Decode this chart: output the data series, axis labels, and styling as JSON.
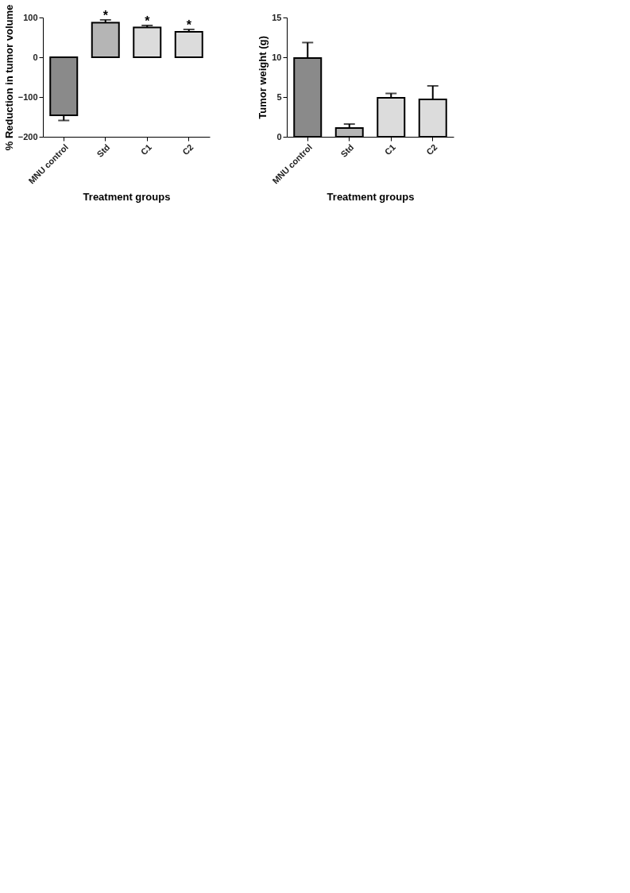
{
  "chart_data": [
    {
      "type": "bar",
      "categories": [
        "MNU control",
        "Std",
        "C1",
        "C2"
      ],
      "values": [
        -146,
        87,
        75,
        64
      ],
      "errors": [
        13,
        7,
        5,
        6
      ],
      "colors": [
        "#8a8a8a",
        "#b5b5b5",
        "#dcdcdc",
        "#dcdcdc"
      ],
      "xlabel": "Treatment groups",
      "ylabel": "% Reduction in tumor volume",
      "ylim": [
        -200,
        100
      ],
      "yticks": [
        -200,
        -100,
        0,
        100
      ],
      "grid": false,
      "annotations": [
        {
          "text": "*",
          "x": "Std",
          "y": 104
        },
        {
          "text": "*",
          "x": "C1",
          "y": 90
        },
        {
          "text": "*",
          "x": "C2",
          "y": 80
        }
      ]
    },
    {
      "type": "bar",
      "categories": [
        "MNU control",
        "Std",
        "C1",
        "C2"
      ],
      "values": [
        9.9,
        1.1,
        4.9,
        4.7
      ],
      "errors": [
        1.95,
        0.5,
        0.55,
        1.7
      ],
      "colors": [
        "#8a8a8a",
        "#b5b5b5",
        "#dcdcdc",
        "#dcdcdc"
      ],
      "xlabel": "Treatment groups",
      "ylabel": "Tumor weight (g)",
      "ylim": [
        0,
        15
      ],
      "yticks": [
        0,
        5,
        10,
        15
      ],
      "grid": false
    }
  ]
}
